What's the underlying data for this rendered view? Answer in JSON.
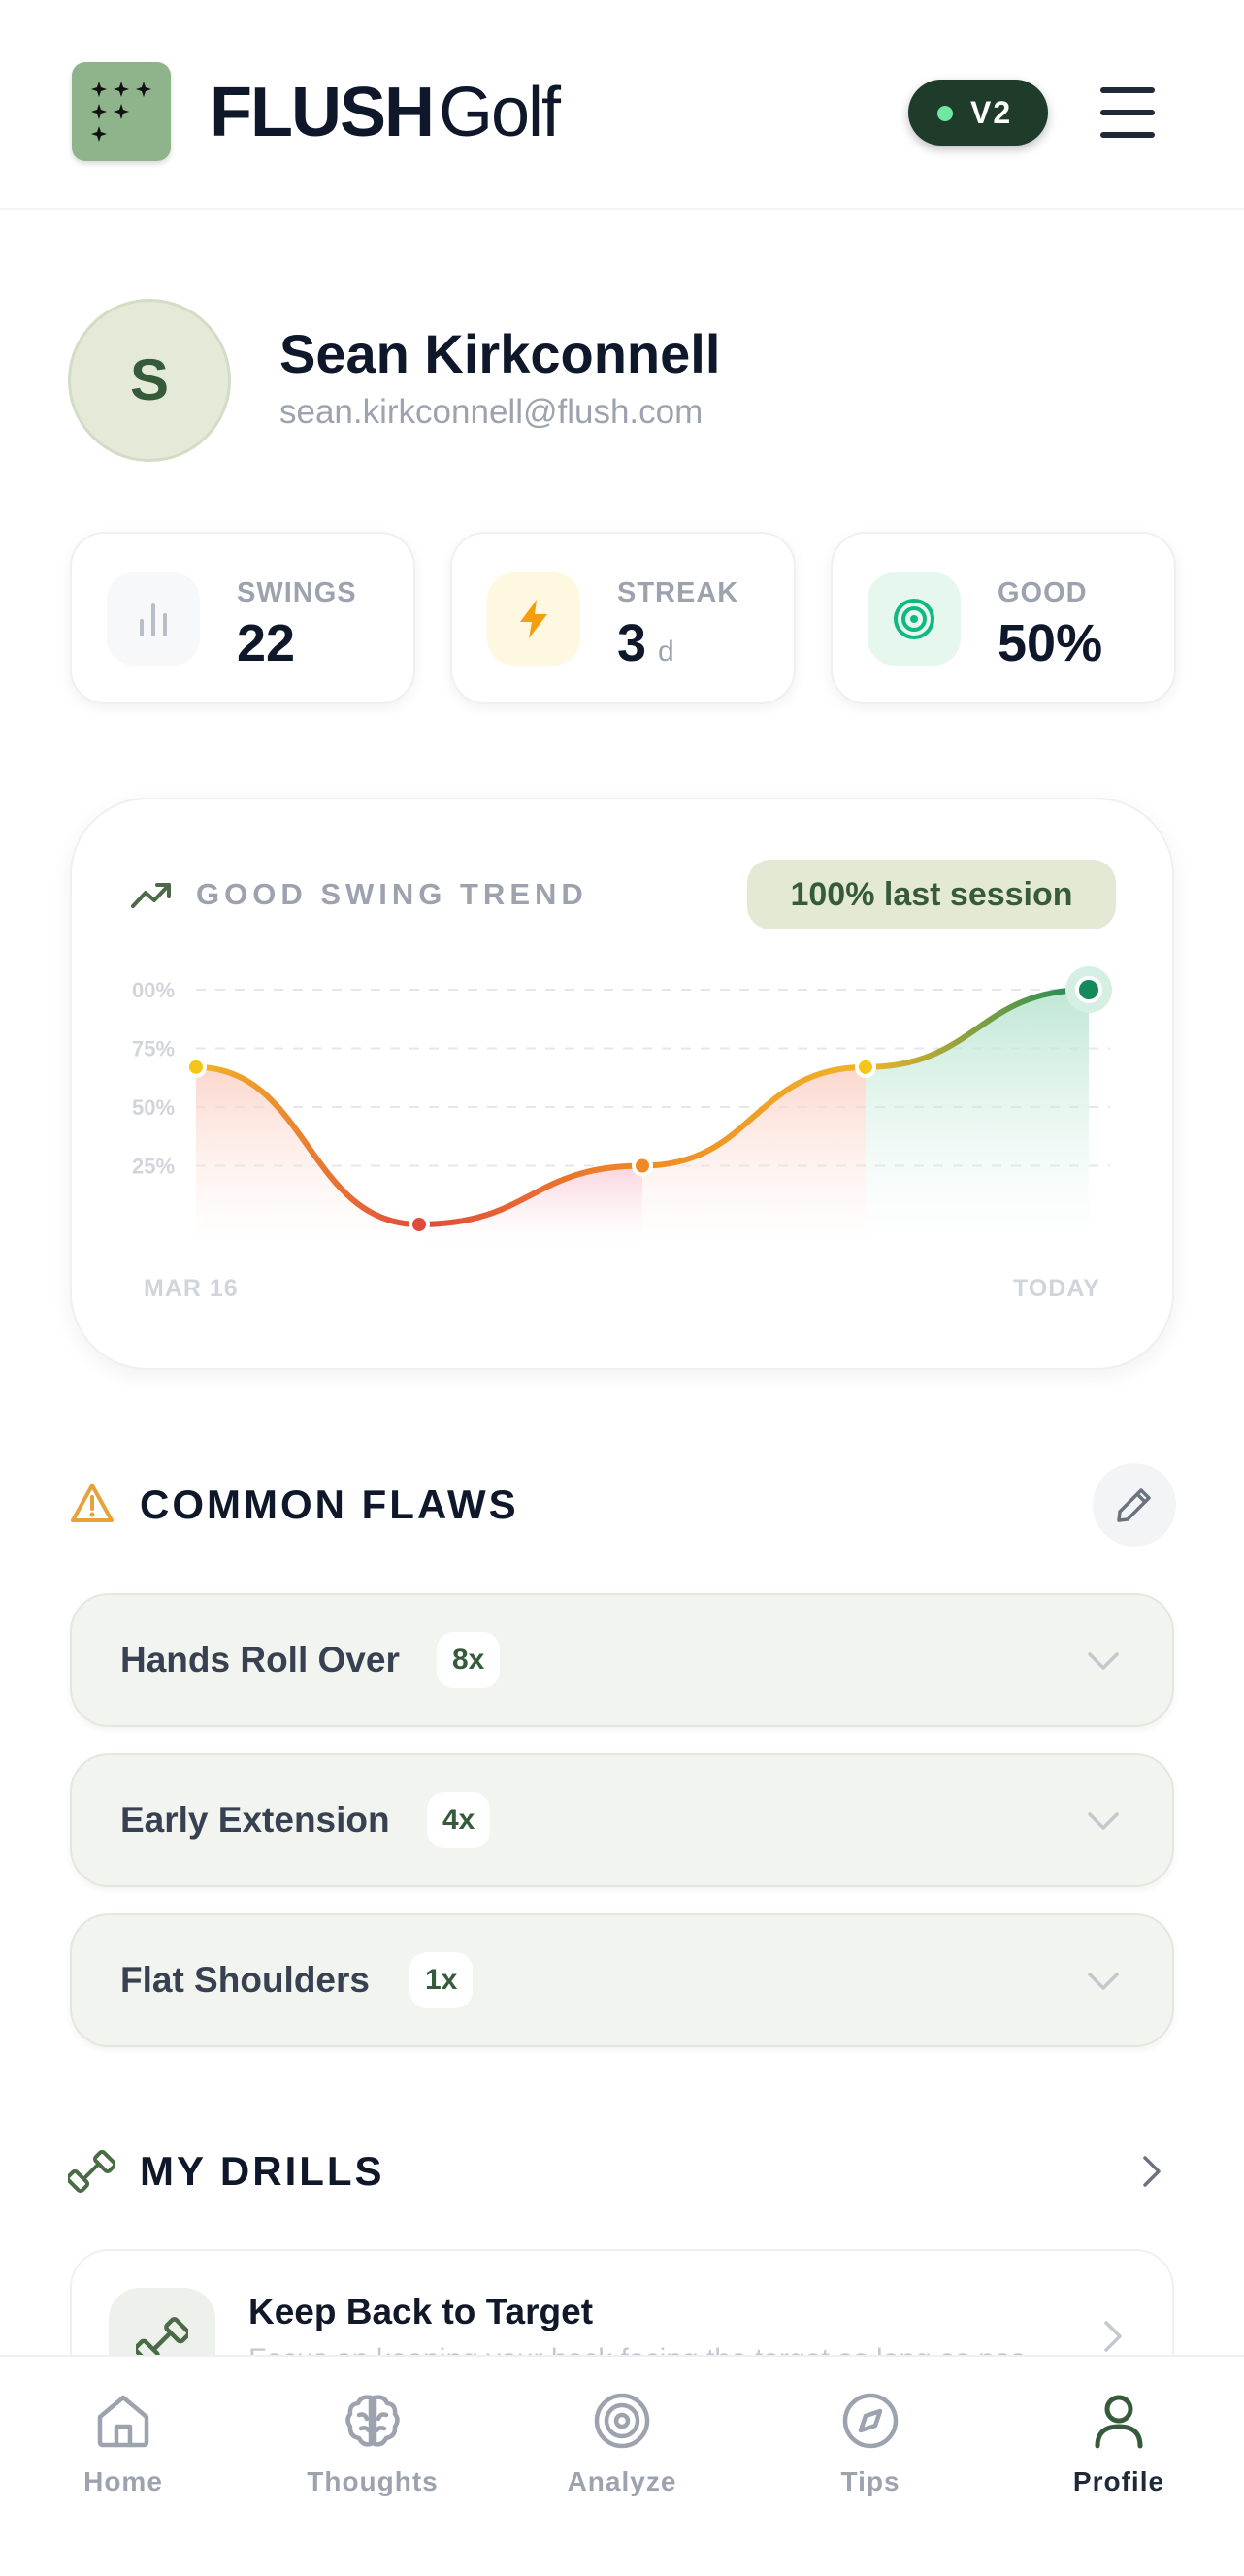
{
  "app": {
    "brand_bold": "FLUSH",
    "brand_light": "Golf",
    "version": "V2"
  },
  "profile": {
    "initial": "S",
    "name": "Sean Kirkconnell",
    "email": "sean.kirkconnell@flush.com"
  },
  "stats": [
    {
      "label": "SWINGS",
      "value": "22",
      "unit": "",
      "icon": "bar-chart-icon"
    },
    {
      "label": "STREAK",
      "value": "3",
      "unit": "d",
      "icon": "lightning-icon"
    },
    {
      "label": "GOOD",
      "value": "50%",
      "unit": "",
      "icon": "target-icon"
    }
  ],
  "trend": {
    "title": "GOOD SWING TREND",
    "badge": "100% last session",
    "start_label": "MAR 16",
    "end_label": "TODAY"
  },
  "chart_data": {
    "type": "line",
    "title": "GOOD SWING TREND",
    "y_ticks": [
      "00%",
      "75%",
      "50%",
      "25%"
    ],
    "ylim": [
      0,
      100
    ],
    "x_labels": [
      "MAR 16",
      "TODAY"
    ],
    "values": [
      67,
      0,
      25,
      67,
      100
    ],
    "point_colors": [
      "#f5c518",
      "#e04a3c",
      "#f08a24",
      "#f5c518",
      "#148a5a"
    ],
    "grid": true
  },
  "flaws": {
    "title": "COMMON FLAWS",
    "items": [
      {
        "name": "Hands Roll Over",
        "count": "8x"
      },
      {
        "name": "Early Extension",
        "count": "4x"
      },
      {
        "name": "Flat Shoulders",
        "count": "1x"
      }
    ]
  },
  "drills": {
    "title": "MY DRILLS",
    "items": [
      {
        "title": "Keep Back to Target",
        "description": "Focus on keeping your back facing the target as long as possible"
      }
    ]
  },
  "nav": {
    "items": [
      {
        "label": "Home",
        "icon": "home-icon"
      },
      {
        "label": "Thoughts",
        "icon": "brain-icon"
      },
      {
        "label": "Analyze",
        "icon": "target-icon"
      },
      {
        "label": "Tips",
        "icon": "compass-icon"
      },
      {
        "label": "Profile",
        "icon": "user-icon"
      }
    ],
    "active": "Profile"
  },
  "colors": {
    "brand_green": "#8fb38a",
    "dark_green": "#1f3b2a",
    "accent_green": "#355b3a",
    "warning": "#e6a23c"
  }
}
